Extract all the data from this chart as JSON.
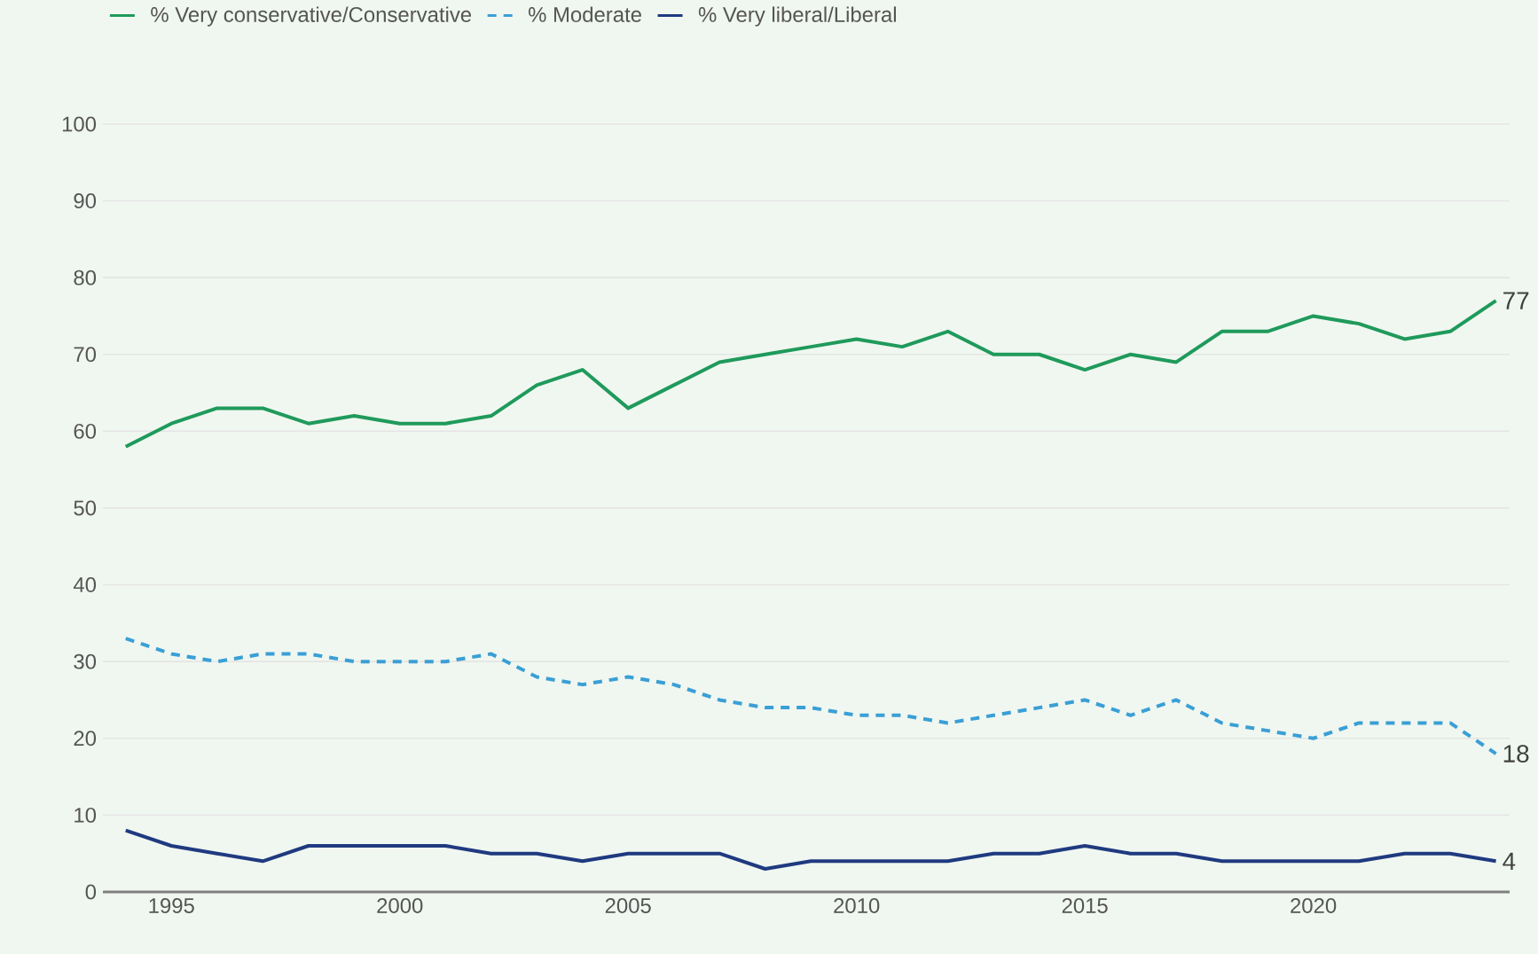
{
  "chart_data": {
    "type": "line",
    "x": [
      1994,
      1995,
      1996,
      1997,
      1998,
      1999,
      2000,
      2001,
      2002,
      2003,
      2004,
      2005,
      2006,
      2007,
      2008,
      2009,
      2010,
      2011,
      2012,
      2013,
      2014,
      2015,
      2016,
      2017,
      2018,
      2019,
      2020,
      2021,
      2022,
      2023,
      2024
    ],
    "series": [
      {
        "name": "% Very conservative/Conservative",
        "color": "#1f9a5b",
        "line_style": "solid",
        "values": [
          58,
          61,
          63,
          63,
          61,
          62,
          61,
          61,
          62,
          66,
          68,
          63,
          66,
          69,
          70,
          71,
          72,
          71,
          73,
          70,
          70,
          68,
          70,
          69,
          73,
          73,
          75,
          74,
          72,
          73,
          77
        ],
        "value_labels": [
          null,
          null,
          null,
          null,
          null,
          null,
          null,
          null,
          null,
          null,
          null,
          null,
          null,
          null,
          null,
          null,
          null,
          null,
          null,
          null,
          null,
          null,
          null,
          null,
          null,
          null,
          null,
          null,
          null,
          null,
          "77"
        ]
      },
      {
        "name": "% Moderate",
        "color": "#3a9fd6",
        "line_style": "dashed",
        "values": [
          33,
          31,
          30,
          31,
          31,
          30,
          30,
          30,
          31,
          28,
          27,
          28,
          27,
          25,
          24,
          24,
          23,
          23,
          22,
          23,
          24,
          25,
          23,
          25,
          22,
          21,
          20,
          22,
          22,
          22,
          18
        ],
        "value_labels": [
          null,
          null,
          null,
          null,
          null,
          null,
          null,
          null,
          null,
          null,
          null,
          null,
          null,
          null,
          null,
          null,
          null,
          null,
          null,
          null,
          null,
          null,
          null,
          null,
          null,
          null,
          null,
          null,
          null,
          null,
          "18"
        ]
      },
      {
        "name": "% Very liberal/Liberal",
        "color": "#1f3a80",
        "line_style": "solid",
        "values": [
          8,
          6,
          5,
          4,
          6,
          6,
          6,
          6,
          5,
          5,
          4,
          5,
          5,
          5,
          3,
          4,
          4,
          4,
          4,
          5,
          5,
          6,
          5,
          5,
          4,
          4,
          4,
          4,
          5,
          5,
          4
        ],
        "value_labels": [
          null,
          null,
          null,
          null,
          null,
          null,
          null,
          null,
          null,
          null,
          null,
          null,
          null,
          null,
          null,
          null,
          null,
          null,
          null,
          null,
          null,
          null,
          null,
          null,
          null,
          null,
          null,
          null,
          null,
          null,
          "4"
        ]
      }
    ],
    "xlim": [
      1993.5,
      2024.3
    ],
    "ylim": [
      0,
      100
    ],
    "xticks": [
      1995,
      2000,
      2005,
      2010,
      2015,
      2020
    ],
    "yticks": [
      0,
      10,
      20,
      30,
      40,
      50,
      60,
      70,
      80,
      90,
      100
    ],
    "grid": "y",
    "legend": "top left",
    "marker": "none"
  }
}
